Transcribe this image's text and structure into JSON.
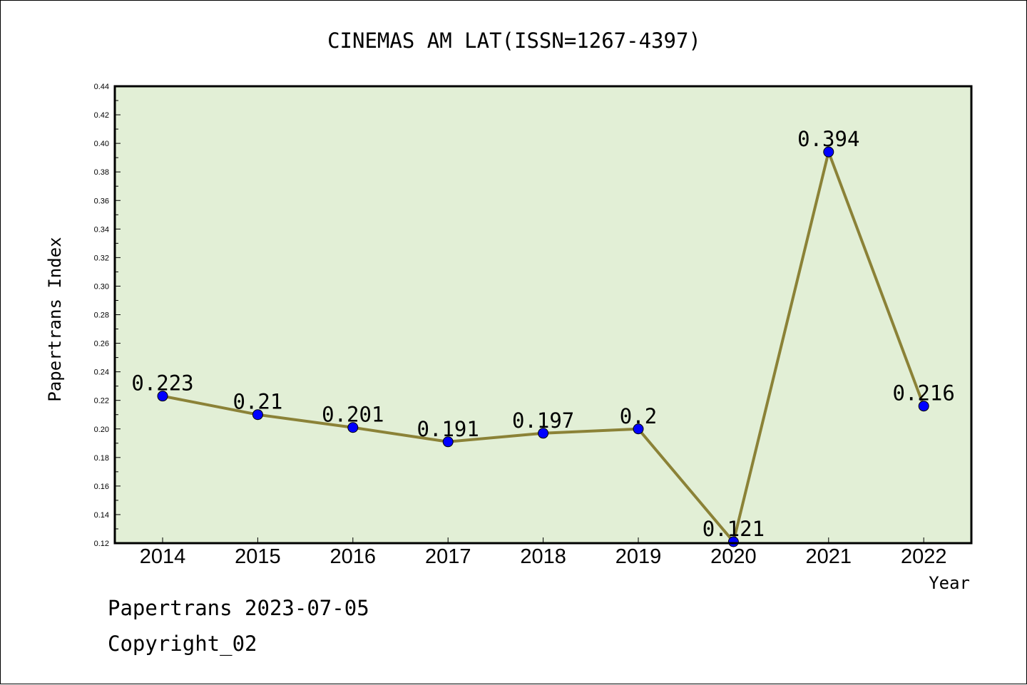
{
  "footer": {
    "date": "Papertrans 2023-07-05",
    "copyright": "Copyright_02"
  },
  "chart_data": {
    "type": "line",
    "title": "CINEMAS AM LAT(ISSN=1267-4397)",
    "xlabel": "Year",
    "ylabel": "Papertrans Index",
    "x": [
      "2014",
      "2015",
      "2016",
      "2017",
      "2018",
      "2019",
      "2020",
      "2021",
      "2022"
    ],
    "series": [
      {
        "values": [
          0.223,
          0.21,
          0.201,
          0.191,
          0.197,
          0.2,
          0.121,
          0.394,
          0.216
        ],
        "labels": [
          "0.223",
          "0.21",
          "0.201",
          "0.191",
          "0.197",
          "0.2",
          "0.121",
          "0.394",
          "0.216"
        ]
      }
    ],
    "ylim": [
      0.12,
      0.44
    ],
    "yticks": [
      "0.12",
      "0.14",
      "0.16",
      "0.18",
      "0.20",
      "0.22",
      "0.24",
      "0.26",
      "0.28",
      "0.30",
      "0.32",
      "0.34",
      "0.36",
      "0.38",
      "0.40",
      "0.42",
      "0.44"
    ],
    "grid": false,
    "colors": {
      "plot_background": "#e2efd6",
      "line": "#8b8237",
      "marker": "#0000ff"
    }
  }
}
